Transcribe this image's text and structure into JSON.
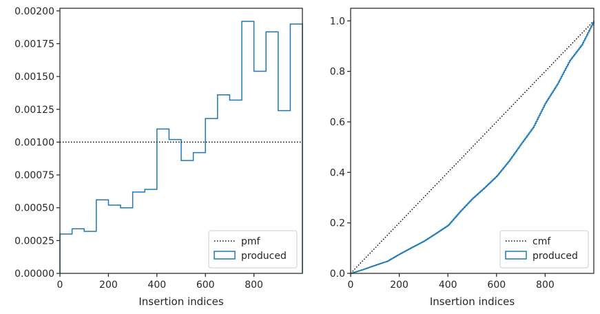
{
  "chart_data": [
    {
      "type": "histogram-step",
      "xlabel": "Insertion indices",
      "ylabel": "",
      "xlim": [
        0,
        1000
      ],
      "ylim": [
        0,
        0.00202
      ],
      "xticks": [
        0,
        200,
        400,
        600,
        800
      ],
      "yticks": [
        0,
        0.00025,
        0.0005,
        0.00075,
        0.001,
        0.00125,
        0.0015,
        0.00175,
        0.002
      ],
      "ytick_labels": [
        "0.00000",
        "0.00025",
        "0.00050",
        "0.00075",
        "0.00100",
        "0.00125",
        "0.00150",
        "0.00175",
        "0.00200"
      ],
      "grid": false,
      "legend_position": "lower right",
      "legend": [
        {
          "label": "pmf",
          "style": "dotted-line",
          "color": "#000000"
        },
        {
          "label": "produced",
          "style": "outline-box",
          "color": "#1f77b4"
        }
      ],
      "reference_line": {
        "name": "pmf",
        "y": 0.001,
        "color": "#000000"
      },
      "series": [
        {
          "name": "produced",
          "color": "#1f77b4",
          "bin_edges": [
            0,
            50,
            100,
            150,
            200,
            250,
            300,
            350,
            400,
            450,
            500,
            550,
            600,
            650,
            700,
            750,
            800,
            850,
            900,
            950,
            1000
          ],
          "values": [
            0.0003,
            0.00034,
            0.00032,
            0.00056,
            0.00052,
            0.0005,
            0.00062,
            0.00064,
            0.0011,
            0.00102,
            0.00086,
            0.00092,
            0.00118,
            0.00136,
            0.00132,
            0.00192,
            0.00154,
            0.00184,
            0.00124,
            0.0019
          ]
        }
      ]
    },
    {
      "type": "line",
      "xlabel": "Insertion indices",
      "ylabel": "",
      "xlim": [
        0,
        1000
      ],
      "ylim": [
        0,
        1.05
      ],
      "xticks": [
        0,
        200,
        400,
        600,
        800
      ],
      "yticks": [
        0,
        0.2,
        0.4,
        0.6,
        0.8,
        1.0
      ],
      "ytick_labels": [
        "0.0",
        "0.2",
        "0.4",
        "0.6",
        "0.8",
        "1.0"
      ],
      "grid": false,
      "legend_position": "lower right",
      "legend": [
        {
          "label": "cmf",
          "style": "dotted-line",
          "color": "#000000"
        },
        {
          "label": "produced",
          "style": "outline-box",
          "color": "#1f77b4"
        }
      ],
      "series": [
        {
          "name": "cmf",
          "color": "#000000",
          "style": "dotted",
          "x": [
            0,
            1000
          ],
          "y": [
            0,
            1.0
          ]
        },
        {
          "name": "produced",
          "color": "#1f77b4",
          "style": "step",
          "x": [
            0,
            50,
            100,
            150,
            200,
            250,
            300,
            350,
            400,
            450,
            500,
            550,
            600,
            650,
            700,
            750,
            800,
            850,
            900,
            950,
            1000
          ],
          "y": [
            0,
            0.015,
            0.032,
            0.048,
            0.076,
            0.102,
            0.127,
            0.158,
            0.19,
            0.245,
            0.296,
            0.339,
            0.385,
            0.444,
            0.512,
            0.578,
            0.674,
            0.75,
            0.842,
            0.905,
            1.0
          ]
        }
      ]
    }
  ]
}
